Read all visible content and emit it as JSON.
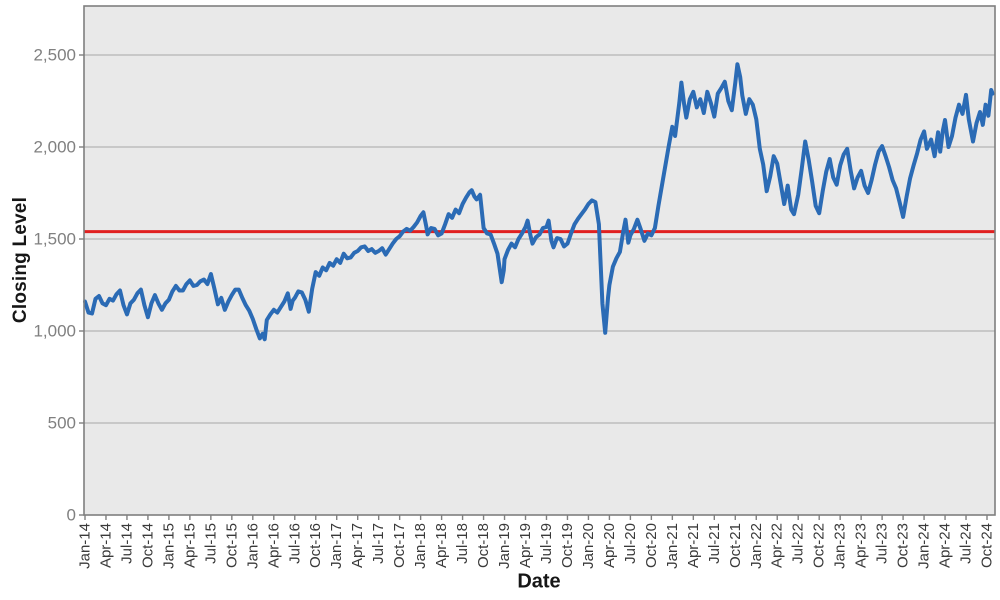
{
  "chart_data": {
    "type": "line",
    "title": "",
    "xlabel": "Date",
    "ylabel": "Closing Level",
    "x_axis": {
      "unit": "months_since_Jan_2014_per_point_t",
      "tick_interval_months": 3,
      "tick_labels": [
        "Jan-14",
        "Apr-14",
        "Jul-14",
        "Oct-14",
        "Jan-15",
        "Apr-15",
        "Jul-15",
        "Oct-15",
        "Jan-16",
        "Apr-16",
        "Jul-16",
        "Oct-16",
        "Jan-17",
        "Apr-17",
        "Jul-17",
        "Oct-17",
        "Jan-18",
        "Apr-18",
        "Jul-18",
        "Oct-18",
        "Jan-19",
        "Apr-19",
        "Jul-19",
        "Oct-19",
        "Jan-20",
        "Apr-20",
        "Jul-20",
        "Oct-20",
        "Jan-21",
        "Apr-21",
        "Jul-21",
        "Oct-21",
        "Jan-22",
        "Apr-22",
        "Jul-22",
        "Oct-22",
        "Jan-23",
        "Apr-23",
        "Jul-23",
        "Oct-23",
        "Jan-24",
        "Apr-24",
        "Jul-24",
        "Oct-24"
      ]
    },
    "y_axis": {
      "tick_values": [
        0,
        500,
        1000,
        1500,
        2000,
        2500
      ],
      "tick_labels": [
        "0",
        "500",
        "1,000",
        "1,500",
        "2,000",
        "2,500"
      ],
      "ylim": [
        0,
        2765
      ],
      "grid": true
    },
    "legend": "none",
    "reference_line": {
      "value": 1540,
      "color": "#e02020"
    },
    "colors": {
      "series": "#2b6bb5",
      "reference": "#e02020",
      "plot_bg": "#e9e9e9",
      "grid": "#a6a6a6",
      "border": "#7f7f7f",
      "y_tick_text": "#808080",
      "x_tick_text": "#3a3a3a",
      "title_text": "#161616"
    },
    "series": [
      {
        "name": "Closing Level",
        "points": [
          [
            0,
            1160
          ],
          [
            0.5,
            1100
          ],
          [
            1,
            1095
          ],
          [
            1.5,
            1175
          ],
          [
            2,
            1190
          ],
          [
            2.5,
            1150
          ],
          [
            3,
            1140
          ],
          [
            3.5,
            1175
          ],
          [
            4,
            1165
          ],
          [
            4.5,
            1200
          ],
          [
            5,
            1220
          ],
          [
            5.5,
            1140
          ],
          [
            6,
            1090
          ],
          [
            6.5,
            1150
          ],
          [
            7,
            1170
          ],
          [
            7.5,
            1205
          ],
          [
            8,
            1225
          ],
          [
            8.5,
            1140
          ],
          [
            9,
            1075
          ],
          [
            9.5,
            1150
          ],
          [
            10,
            1195
          ],
          [
            10.5,
            1150
          ],
          [
            11,
            1115
          ],
          [
            11.5,
            1150
          ],
          [
            12,
            1170
          ],
          [
            12.5,
            1215
          ],
          [
            13,
            1245
          ],
          [
            13.5,
            1220
          ],
          [
            14,
            1220
          ],
          [
            14.5,
            1255
          ],
          [
            15,
            1275
          ],
          [
            15.5,
            1245
          ],
          [
            16,
            1250
          ],
          [
            16.5,
            1270
          ],
          [
            17,
            1280
          ],
          [
            17.5,
            1255
          ],
          [
            18,
            1310
          ],
          [
            18.5,
            1230
          ],
          [
            19,
            1145
          ],
          [
            19.5,
            1180
          ],
          [
            20,
            1115
          ],
          [
            20.5,
            1160
          ],
          [
            21,
            1195
          ],
          [
            21.5,
            1225
          ],
          [
            22,
            1225
          ],
          [
            22.5,
            1180
          ],
          [
            23,
            1140
          ],
          [
            23.5,
            1110
          ],
          [
            24,
            1065
          ],
          [
            24.5,
            1010
          ],
          [
            25,
            960
          ],
          [
            25.4,
            985
          ],
          [
            25.7,
            955
          ],
          [
            26,
            1060
          ],
          [
            26.5,
            1090
          ],
          [
            27,
            1115
          ],
          [
            27.5,
            1100
          ],
          [
            28,
            1130
          ],
          [
            28.5,
            1160
          ],
          [
            29,
            1205
          ],
          [
            29.4,
            1120
          ],
          [
            29.7,
            1165
          ],
          [
            30,
            1180
          ],
          [
            30.5,
            1215
          ],
          [
            31,
            1210
          ],
          [
            31.5,
            1170
          ],
          [
            32,
            1105
          ],
          [
            32.5,
            1230
          ],
          [
            33,
            1320
          ],
          [
            33.5,
            1300
          ],
          [
            34,
            1345
          ],
          [
            34.5,
            1330
          ],
          [
            35,
            1370
          ],
          [
            35.5,
            1355
          ],
          [
            36,
            1390
          ],
          [
            36.5,
            1370
          ],
          [
            37,
            1420
          ],
          [
            37.5,
            1395
          ],
          [
            38,
            1400
          ],
          [
            38.5,
            1425
          ],
          [
            39,
            1435
          ],
          [
            39.5,
            1455
          ],
          [
            40,
            1460
          ],
          [
            40.5,
            1435
          ],
          [
            41,
            1445
          ],
          [
            41.5,
            1425
          ],
          [
            42,
            1435
          ],
          [
            42.5,
            1450
          ],
          [
            43,
            1415
          ],
          [
            43.5,
            1445
          ],
          [
            44,
            1475
          ],
          [
            44.5,
            1500
          ],
          [
            45,
            1515
          ],
          [
            45.5,
            1540
          ],
          [
            46,
            1555
          ],
          [
            46.5,
            1545
          ],
          [
            47,
            1565
          ],
          [
            47.5,
            1590
          ],
          [
            48,
            1625
          ],
          [
            48.4,
            1645
          ],
          [
            48.8,
            1570
          ],
          [
            49,
            1525
          ],
          [
            49.5,
            1560
          ],
          [
            50,
            1555
          ],
          [
            50.5,
            1520
          ],
          [
            51,
            1530
          ],
          [
            51.5,
            1580
          ],
          [
            52,
            1635
          ],
          [
            52.5,
            1615
          ],
          [
            53,
            1660
          ],
          [
            53.5,
            1640
          ],
          [
            54,
            1690
          ],
          [
            54.5,
            1725
          ],
          [
            55,
            1755
          ],
          [
            55.3,
            1765
          ],
          [
            55.7,
            1730
          ],
          [
            56,
            1715
          ],
          [
            56.5,
            1740
          ],
          [
            57,
            1560
          ],
          [
            57.5,
            1530
          ],
          [
            58,
            1525
          ],
          [
            58.5,
            1475
          ],
          [
            59,
            1420
          ],
          [
            59.6,
            1265
          ],
          [
            59.9,
            1330
          ],
          [
            60,
            1390
          ],
          [
            60.5,
            1440
          ],
          [
            61,
            1475
          ],
          [
            61.5,
            1455
          ],
          [
            62,
            1500
          ],
          [
            62.5,
            1530
          ],
          [
            63,
            1565
          ],
          [
            63.3,
            1600
          ],
          [
            63.7,
            1520
          ],
          [
            64,
            1475
          ],
          [
            64.5,
            1510
          ],
          [
            65,
            1525
          ],
          [
            65.5,
            1560
          ],
          [
            66,
            1565
          ],
          [
            66.3,
            1600
          ],
          [
            66.7,
            1490
          ],
          [
            67,
            1455
          ],
          [
            67.5,
            1505
          ],
          [
            68,
            1500
          ],
          [
            68.5,
            1460
          ],
          [
            69,
            1475
          ],
          [
            69.5,
            1530
          ],
          [
            70,
            1580
          ],
          [
            70.5,
            1610
          ],
          [
            71,
            1635
          ],
          [
            71.5,
            1660
          ],
          [
            72,
            1690
          ],
          [
            72.5,
            1710
          ],
          [
            73,
            1700
          ],
          [
            73.5,
            1580
          ],
          [
            74,
            1150
          ],
          [
            74.4,
            990
          ],
          [
            74.8,
            1180
          ],
          [
            75,
            1250
          ],
          [
            75.5,
            1350
          ],
          [
            76,
            1395
          ],
          [
            76.5,
            1430
          ],
          [
            77,
            1545
          ],
          [
            77.3,
            1605
          ],
          [
            77.7,
            1480
          ],
          [
            78,
            1520
          ],
          [
            78.5,
            1555
          ],
          [
            79,
            1605
          ],
          [
            79.5,
            1550
          ],
          [
            80,
            1490
          ],
          [
            80.5,
            1530
          ],
          [
            81,
            1520
          ],
          [
            81.5,
            1560
          ],
          [
            82,
            1680
          ],
          [
            82.5,
            1790
          ],
          [
            83,
            1900
          ],
          [
            83.5,
            2010
          ],
          [
            84,
            2110
          ],
          [
            84.4,
            2060
          ],
          [
            85,
            2240
          ],
          [
            85.3,
            2350
          ],
          [
            85.7,
            2230
          ],
          [
            86,
            2160
          ],
          [
            86.5,
            2260
          ],
          [
            87,
            2300
          ],
          [
            87.5,
            2215
          ],
          [
            88,
            2260
          ],
          [
            88.5,
            2185
          ],
          [
            89,
            2300
          ],
          [
            89.5,
            2240
          ],
          [
            90,
            2165
          ],
          [
            90.5,
            2290
          ],
          [
            91,
            2320
          ],
          [
            91.5,
            2355
          ],
          [
            92,
            2250
          ],
          [
            92.5,
            2200
          ],
          [
            93,
            2350
          ],
          [
            93.3,
            2450
          ],
          [
            93.7,
            2380
          ],
          [
            94,
            2280
          ],
          [
            94.5,
            2180
          ],
          [
            95,
            2260
          ],
          [
            95.5,
            2230
          ],
          [
            96,
            2150
          ],
          [
            96.5,
            1990
          ],
          [
            97,
            1905
          ],
          [
            97.5,
            1760
          ],
          [
            98,
            1840
          ],
          [
            98.5,
            1950
          ],
          [
            99,
            1910
          ],
          [
            99.5,
            1800
          ],
          [
            100,
            1690
          ],
          [
            100.5,
            1790
          ],
          [
            101,
            1660
          ],
          [
            101.4,
            1635
          ],
          [
            102,
            1740
          ],
          [
            102.5,
            1880
          ],
          [
            103,
            2030
          ],
          [
            103.5,
            1930
          ],
          [
            104,
            1810
          ],
          [
            104.5,
            1680
          ],
          [
            105,
            1640
          ],
          [
            105.5,
            1760
          ],
          [
            106,
            1865
          ],
          [
            106.5,
            1935
          ],
          [
            107,
            1835
          ],
          [
            107.5,
            1795
          ],
          [
            108,
            1900
          ],
          [
            108.5,
            1960
          ],
          [
            109,
            1990
          ],
          [
            109.5,
            1870
          ],
          [
            110,
            1775
          ],
          [
            110.5,
            1835
          ],
          [
            111,
            1870
          ],
          [
            111.5,
            1790
          ],
          [
            112,
            1750
          ],
          [
            112.5,
            1820
          ],
          [
            113,
            1905
          ],
          [
            113.5,
            1975
          ],
          [
            114,
            2005
          ],
          [
            114.5,
            1950
          ],
          [
            115,
            1890
          ],
          [
            115.5,
            1820
          ],
          [
            116,
            1775
          ],
          [
            116.5,
            1700
          ],
          [
            117,
            1620
          ],
          [
            117.5,
            1730
          ],
          [
            118,
            1830
          ],
          [
            118.5,
            1900
          ],
          [
            119,
            1965
          ],
          [
            119.5,
            2040
          ],
          [
            120,
            2085
          ],
          [
            120.4,
            1990
          ],
          [
            121,
            2040
          ],
          [
            121.5,
            1950
          ],
          [
            122,
            2080
          ],
          [
            122.3,
            1975
          ],
          [
            122.7,
            2090
          ],
          [
            123,
            2147
          ],
          [
            123.5,
            2000
          ],
          [
            124,
            2060
          ],
          [
            124.5,
            2160
          ],
          [
            125,
            2230
          ],
          [
            125.5,
            2180
          ],
          [
            126,
            2283
          ],
          [
            126.4,
            2150
          ],
          [
            127,
            2030
          ],
          [
            127.5,
            2130
          ],
          [
            128,
            2190
          ],
          [
            128.4,
            2120
          ],
          [
            128.8,
            2230
          ],
          [
            129.2,
            2170
          ],
          [
            129.6,
            2310
          ],
          [
            129.8,
            2290
          ]
        ]
      }
    ]
  },
  "labels": {
    "x_axis_title": "Date",
    "y_axis_title": "Closing Level"
  }
}
